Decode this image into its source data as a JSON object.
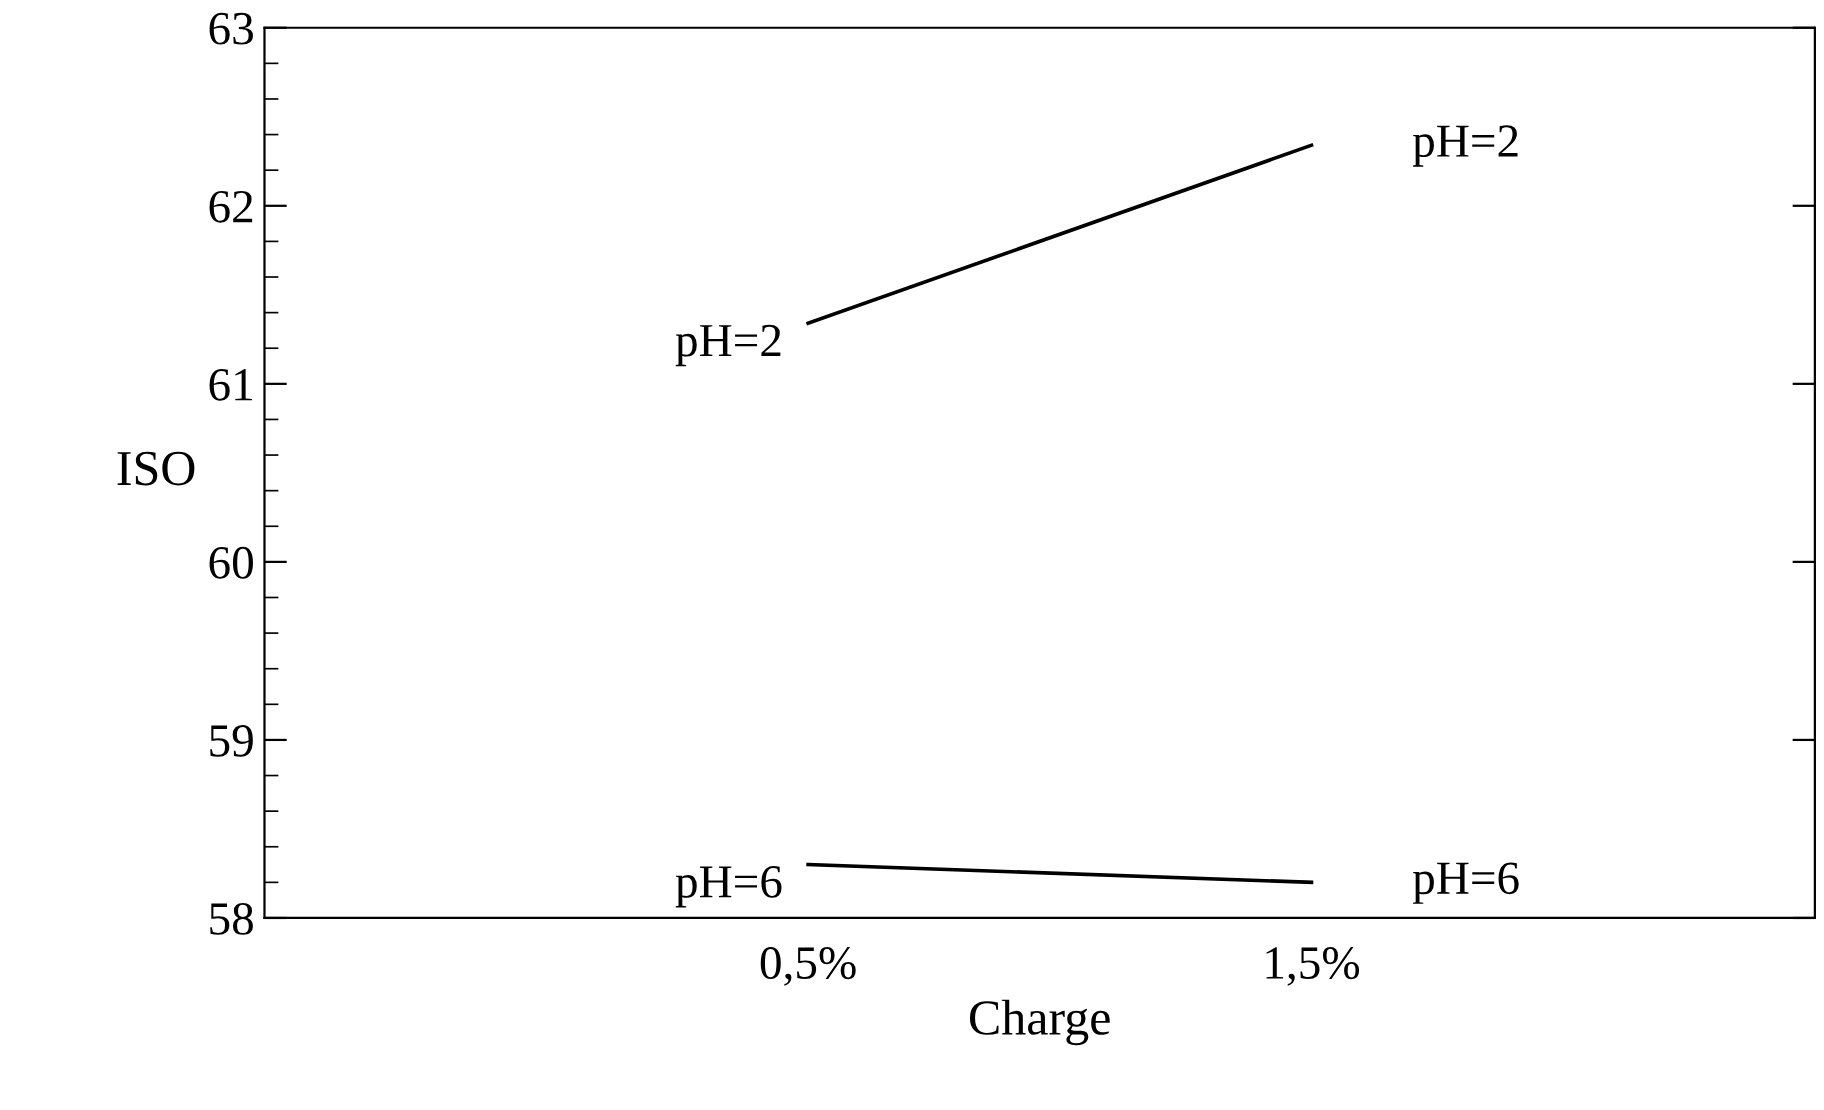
{
  "chart_data": {
    "type": "line",
    "xlabel": "Charge",
    "ylabel": "ISO",
    "categories": [
      "0,5%",
      "1,5%"
    ],
    "series": [
      {
        "name": "pH=2",
        "color": "#000000",
        "values": [
          61.34,
          62.34
        ]
      },
      {
        "name": "pH=6",
        "color": "#000000",
        "values": [
          58.3,
          58.2
        ]
      }
    ],
    "ylim": [
      58,
      63
    ],
    "yticks": [
      58,
      59,
      60,
      61,
      62,
      63
    ],
    "grid": false,
    "legend": false,
    "marker": "none",
    "line_style": "solid"
  }
}
